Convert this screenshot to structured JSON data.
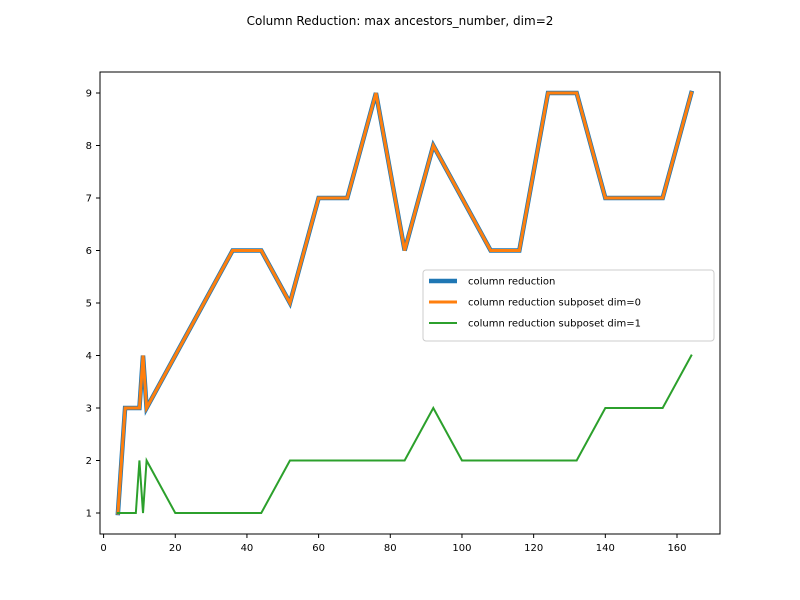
{
  "chart_data": {
    "type": "line",
    "title": "Column Reduction: max ancestors_number, dim=2",
    "xlabel": "",
    "ylabel": "",
    "xlim": [
      -1,
      172
    ],
    "ylim": [
      0.6,
      9.4
    ],
    "xticks": [
      0,
      20,
      40,
      60,
      80,
      100,
      120,
      140,
      160
    ],
    "yticks": [
      1,
      2,
      3,
      4,
      5,
      6,
      7,
      8,
      9
    ],
    "grid": false,
    "legend_position": "center-right",
    "series": [
      {
        "name": "column reduction",
        "color": "#1f77b4",
        "x": [
          4,
          6,
          8,
          10,
          11,
          12,
          20,
          28,
          36,
          40,
          44,
          52,
          60,
          64,
          68,
          76,
          84,
          92,
          100,
          108,
          112,
          116,
          124,
          128,
          132,
          140,
          148,
          156,
          164
        ],
        "y": [
          1,
          3,
          3,
          3,
          4,
          3,
          4,
          5,
          6,
          6,
          6,
          5,
          7,
          7,
          7,
          9,
          6,
          8,
          7,
          6,
          6,
          6,
          9,
          9,
          9,
          7,
          7,
          7,
          9
        ]
      },
      {
        "name": "column reduction subposet dim=0",
        "color": "#ff7f0e",
        "x": [
          4,
          6,
          8,
          10,
          11,
          12,
          20,
          28,
          36,
          40,
          44,
          52,
          60,
          64,
          68,
          76,
          84,
          92,
          100,
          108,
          112,
          116,
          124,
          128,
          132,
          140,
          148,
          156,
          164
        ],
        "y": [
          1,
          3,
          3,
          3,
          4,
          3,
          4,
          5,
          6,
          6,
          6,
          5,
          7,
          7,
          7,
          9,
          6,
          8,
          7,
          6,
          6,
          6,
          9,
          9,
          9,
          7,
          7,
          7,
          9
        ]
      },
      {
        "name": "column reduction subposet dim=1",
        "color": "#2ca02c",
        "x": [
          4,
          6,
          8,
          9,
          10,
          11,
          12,
          20,
          28,
          36,
          44,
          52,
          60,
          68,
          76,
          84,
          92,
          100,
          108,
          116,
          124,
          132,
          140,
          148,
          156,
          164
        ],
        "y": [
          1,
          1,
          1,
          1,
          2,
          1,
          2,
          1,
          1,
          1,
          1,
          2,
          2,
          2,
          2,
          2,
          3,
          2,
          2,
          2,
          2,
          2,
          3,
          3,
          3,
          4
        ]
      }
    ]
  }
}
